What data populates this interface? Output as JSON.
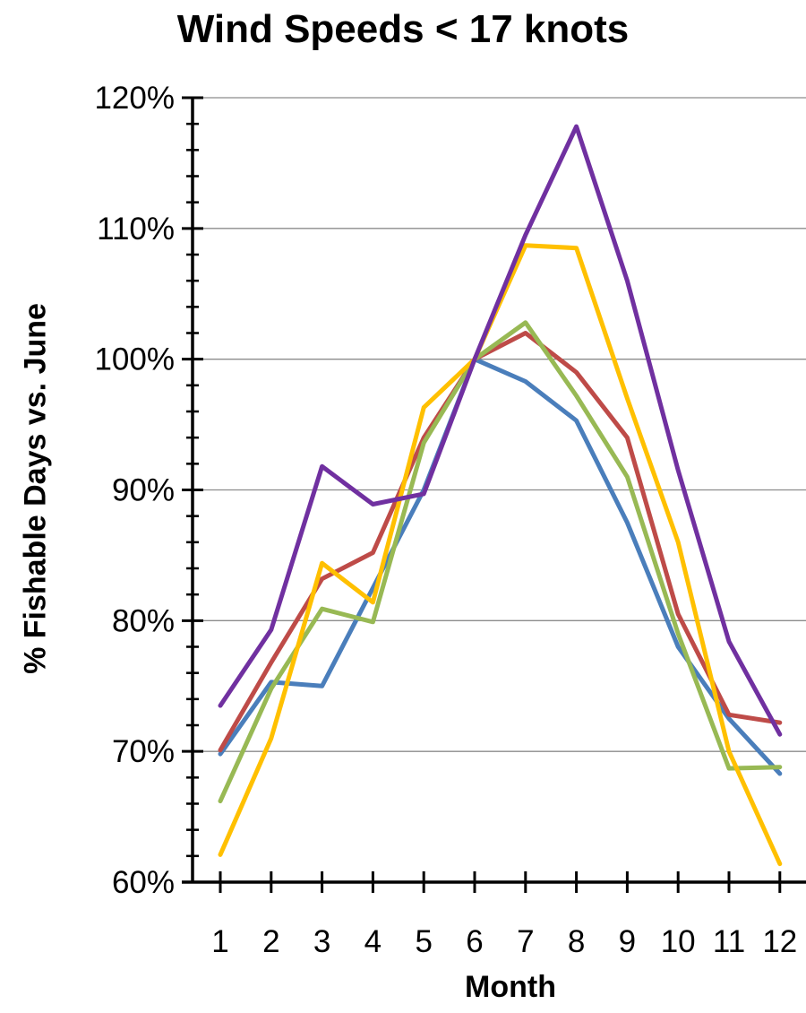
{
  "chart_data": {
    "type": "line",
    "title": "Wind Speeds < 17 knots",
    "xlabel": "Month",
    "ylabel": "% Fishable Days vs. June",
    "categories": [
      "1",
      "2",
      "3",
      "4",
      "5",
      "6",
      "7",
      "8",
      "9",
      "10",
      "11",
      "12"
    ],
    "y_ticks": [
      "60%",
      "70%",
      "80%",
      "90%",
      "100%",
      "110%",
      "120%"
    ],
    "ylim": [
      60,
      120
    ],
    "grid": "horizontal",
    "legend": "none",
    "series": [
      {
        "color": "#4a7ebb",
        "values": [
          69.8,
          75.3,
          75.0,
          82.5,
          90.0,
          100.0,
          98.3,
          95.3,
          87.5,
          78.0,
          72.5,
          68.3
        ]
      },
      {
        "color": "#be4b48",
        "values": [
          70.1,
          76.8,
          83.2,
          85.2,
          94.0,
          100.0,
          102.0,
          99.0,
          94.0,
          80.5,
          72.8,
          72.2
        ]
      },
      {
        "color": "#98b954",
        "values": [
          66.2,
          74.8,
          80.9,
          79.9,
          93.6,
          100.0,
          102.8,
          97.2,
          91.0,
          79.0,
          68.7,
          68.8
        ]
      },
      {
        "color": "#ffc000",
        "values": [
          62.1,
          71.0,
          84.4,
          81.4,
          96.3,
          100.0,
          108.7,
          108.5,
          97.0,
          86.0,
          70.0,
          61.4
        ]
      },
      {
        "color": "#7030a0",
        "values": [
          73.5,
          79.3,
          91.8,
          88.9,
          89.7,
          100.0,
          109.5,
          117.8,
          106.0,
          91.5,
          78.4,
          71.3
        ]
      }
    ]
  }
}
